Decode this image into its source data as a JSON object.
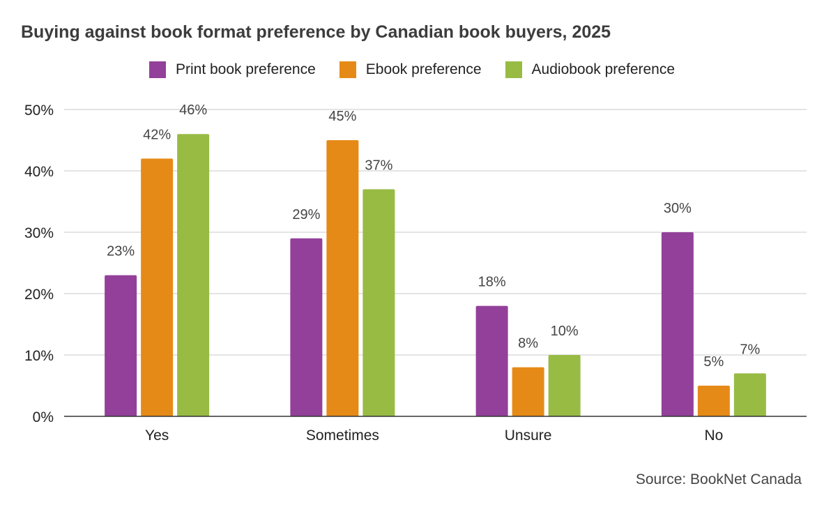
{
  "chart_data": {
    "type": "bar",
    "title": "Buying against book format preference by Canadian book buyers, 2025",
    "categories": [
      "Yes",
      "Sometimes",
      "Unsure",
      "No"
    ],
    "series": [
      {
        "name": "Print book preference",
        "color": "#93409a",
        "values": [
          23,
          29,
          18,
          30
        ],
        "labels": [
          "23%",
          "29%",
          "18%",
          "30%"
        ]
      },
      {
        "name": "Ebook preference",
        "color": "#e68a17",
        "values": [
          42,
          45,
          8,
          5
        ],
        "labels": [
          "42%",
          "45%",
          "8%",
          "5%"
        ]
      },
      {
        "name": "Audiobook preference",
        "color": "#98bb44",
        "values": [
          46,
          37,
          10,
          7
        ],
        "labels": [
          "46%",
          "37%",
          "10%",
          "7%"
        ]
      }
    ],
    "ylim": [
      0,
      50
    ],
    "yticks": [
      0,
      10,
      20,
      30,
      40,
      50
    ],
    "ytick_labels": [
      "0%",
      "10%",
      "20%",
      "30%",
      "40%",
      "50%"
    ],
    "xlabel": "",
    "ylabel": "",
    "grid": true,
    "legend_position": "top"
  },
  "source": "Source: BookNet Canada"
}
